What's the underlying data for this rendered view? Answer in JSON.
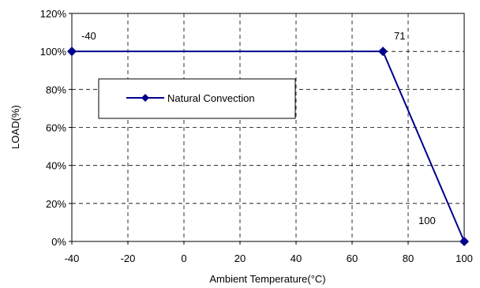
{
  "chart_data": {
    "type": "line",
    "title": "",
    "xlabel": "Ambient Temperature(°C)",
    "ylabel": "LOAD(%)",
    "xlim": [
      -40,
      100
    ],
    "ylim": [
      0,
      120
    ],
    "x_ticks": [
      -40,
      -20,
      0,
      20,
      40,
      60,
      80,
      100
    ],
    "y_ticks": [
      "0%",
      "20%",
      "40%",
      "60%",
      "80%",
      "100%",
      "120%"
    ],
    "y_tick_values": [
      0,
      20,
      40,
      60,
      80,
      100,
      120
    ],
    "grid": true,
    "legend_position": "upper-left",
    "series": [
      {
        "name": "Natural Convection",
        "color": "#00008b",
        "marker": "diamond",
        "points": [
          {
            "x": -40,
            "y": 100,
            "label": "-40"
          },
          {
            "x": 71,
            "y": 100,
            "label": "71"
          },
          {
            "x": 100,
            "y": 0,
            "label": "100"
          }
        ]
      }
    ]
  }
}
